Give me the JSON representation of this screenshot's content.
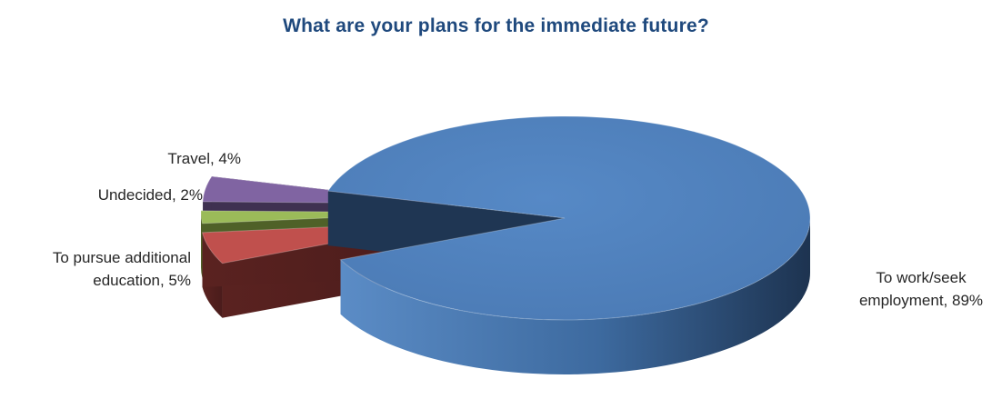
{
  "chart_data": {
    "type": "pie",
    "title": "What are your plans for the immediate future?",
    "series": [
      {
        "name": "",
        "values": [
          {
            "label": "To work/seek employment",
            "value": 89,
            "display": "89%"
          },
          {
            "label": "To pursue additional education",
            "value": 5,
            "display": "5%"
          },
          {
            "label": "Undecided",
            "value": 2,
            "display": "2%"
          },
          {
            "label": "Travel",
            "value": 4,
            "display": "4%"
          }
        ]
      }
    ],
    "data_labels": [
      {
        "lines": [
          "To work/seek",
          "employment, 89%"
        ]
      },
      {
        "lines": [
          "To pursue additional",
          "education, 5%"
        ]
      },
      {
        "lines": [
          "Undecided, 2%"
        ]
      },
      {
        "lines": [
          "Travel, 4%"
        ]
      }
    ],
    "style": "3d-exploded",
    "legend": "none",
    "colors": {
      "To work/seek employment": "#4f81bd",
      "To pursue additional education": "#c0504d",
      "Undecided": "#9bbb59",
      "Travel": "#8064a2"
    }
  }
}
